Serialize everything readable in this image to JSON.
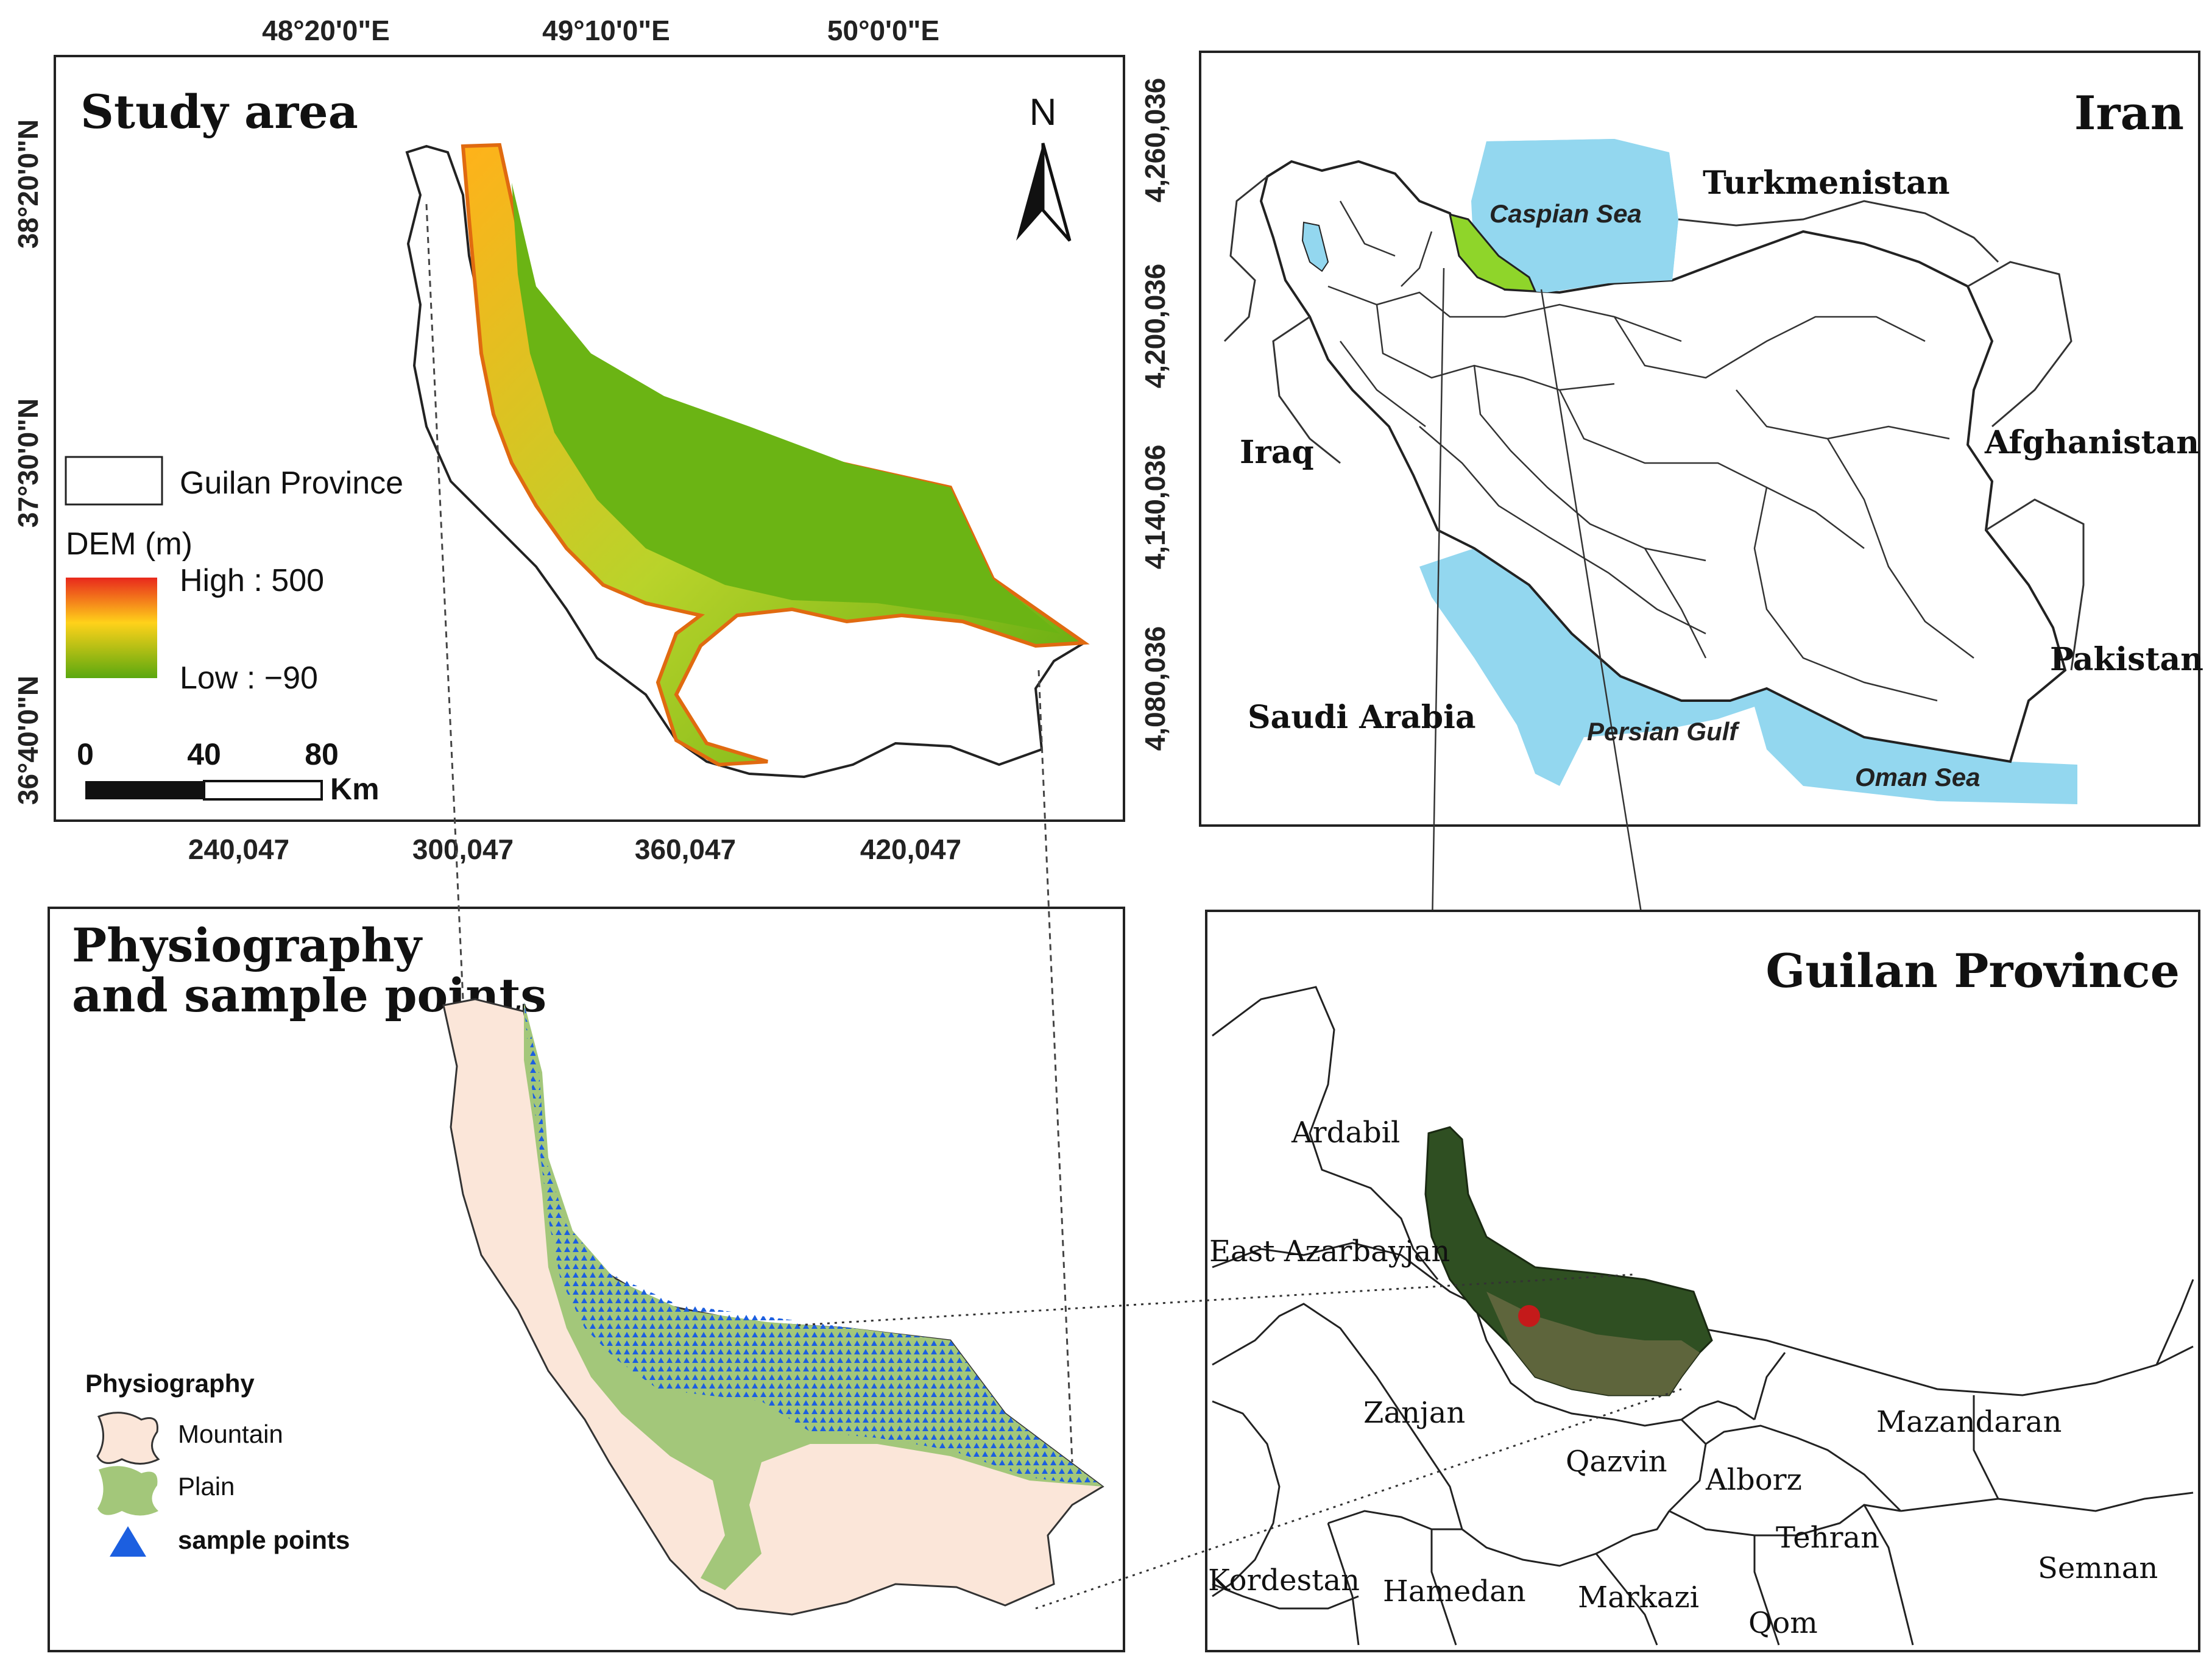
{
  "study_area": {
    "title": "Study area",
    "north_arrow": "N",
    "lon_ticks": [
      "48°20'0\"E",
      "49°10'0\"E",
      "50°0'0\"E"
    ],
    "lat_ticks": [
      "38°20'0\"N",
      "37°30'0\"N",
      "36°40'0\"N"
    ],
    "easting_ticks": [
      "240,047",
      "300,047",
      "360,047",
      "420,047"
    ],
    "northing_ticks": [
      "4,260,036",
      "4,200,036",
      "4,140,036",
      "4,080,036"
    ],
    "legend": {
      "boundary_label": "Guilan Province",
      "dem_title": "DEM (m)",
      "high_label": "High : 500",
      "low_label": "Low : −90",
      "ramp_colors": [
        "#e8281c",
        "#ffd21a",
        "#5aa80f"
      ]
    },
    "scalebar": {
      "labels": [
        "0",
        "40",
        "80"
      ],
      "unit": "Km"
    }
  },
  "iran": {
    "title": "Iran",
    "countries": [
      "Turkmenistan",
      "Iraq",
      "Afghanistan",
      "Pakistan",
      "Saudi Arabia"
    ],
    "seas": [
      "Caspian Sea",
      "Persian Gulf",
      "Oman Sea"
    ],
    "colors": {
      "water": "#93d7ef",
      "highlight": "#8fd52a"
    }
  },
  "physiography": {
    "title_line1": "Physiography",
    "title_line2": "and sample points",
    "legend_title": "Physiography",
    "legend_items": [
      {
        "label": "Mountain",
        "color": "#fbe6d9"
      },
      {
        "label": "Plain",
        "color": "#a3c77a"
      },
      {
        "label": "sample points",
        "color": "#1c5fe0"
      }
    ]
  },
  "guilan": {
    "title": "Guilan Province",
    "provinces": [
      "Ardabil",
      "East Azarbayjan",
      "Zanjan",
      "Qazvin",
      "Alborz",
      "Mazandaran",
      "Tehran",
      "Semnan",
      "Kordestan",
      "Hamedan",
      "Markazi",
      "Qom"
    ]
  }
}
